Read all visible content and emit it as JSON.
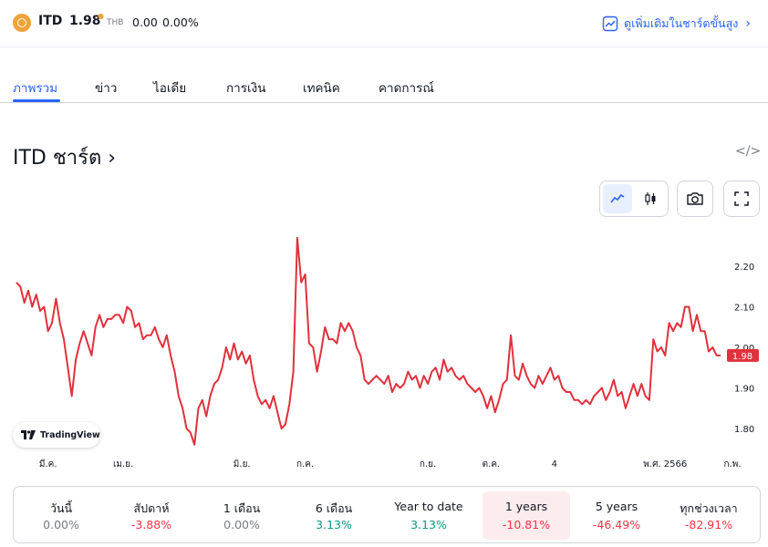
{
  "header": {
    "ticker": "ITD",
    "price": "1.98",
    "currency": "THB",
    "change": "0.00",
    "change_pct": "0.00%",
    "advanced_link": "ดูเพิ่มเติมในชาร์ตขั้นสูง",
    "logo_color": "#f0a33a"
  },
  "tabs": [
    {
      "label": "ภาพรวม",
      "active": true
    },
    {
      "label": "ข่าว"
    },
    {
      "label": "ไอเดีย"
    },
    {
      "label": "การเงิน"
    },
    {
      "label": "เทคนิค"
    },
    {
      "label": "คาดการณ์"
    }
  ],
  "chart_section": {
    "title": "ITD ชาร์ต",
    "title_chevron": "›",
    "embed_icon": "</>",
    "badge_text": "TradingView"
  },
  "chart_data": {
    "type": "line",
    "color": "#e0313c",
    "title": "",
    "xlabel": "",
    "ylabel": "",
    "y_ticks": [
      "2.20",
      "2.10",
      "2.00",
      "1.90",
      "1.80"
    ],
    "ylim": [
      1.74,
      2.27
    ],
    "x_ticks": [
      {
        "label": "มี.ค.",
        "index": 8
      },
      {
        "label": "เม.ย.",
        "index": 27
      },
      {
        "label": "มิ.ย.",
        "index": 57
      },
      {
        "label": "ก.ค.",
        "index": 73
      },
      {
        "label": "ก.ย.",
        "index": 104
      },
      {
        "label": "ต.ค.",
        "index": 120
      },
      {
        "label": "4",
        "index": 136
      },
      {
        "label": "พ.ศ. 2566",
        "index": 164
      },
      {
        "label": "ก.พ.",
        "index": 181
      }
    ],
    "last_value_label": "1.98",
    "values": [
      2.16,
      2.15,
      2.11,
      2.14,
      2.1,
      2.13,
      2.09,
      2.1,
      2.04,
      2.06,
      2.12,
      2.06,
      2.02,
      1.95,
      1.88,
      1.97,
      2.01,
      2.04,
      2.01,
      1.98,
      2.05,
      2.08,
      2.05,
      2.07,
      2.07,
      2.08,
      2.08,
      2.06,
      2.1,
      2.09,
      2.05,
      2.06,
      2.02,
      2.03,
      2.03,
      2.05,
      2.02,
      2.0,
      2.03,
      1.98,
      1.94,
      1.88,
      1.85,
      1.8,
      1.79,
      1.76,
      1.85,
      1.87,
      1.83,
      1.88,
      1.91,
      1.92,
      1.95,
      2.0,
      1.97,
      2.01,
      1.97,
      1.99,
      1.96,
      1.98,
      1.92,
      1.88,
      1.86,
      1.87,
      1.85,
      1.88,
      1.84,
      1.8,
      1.81,
      1.86,
      1.94,
      2.27,
      2.16,
      2.18,
      2.01,
      2.0,
      1.94,
      1.99,
      2.05,
      2.02,
      2.02,
      2.01,
      2.06,
      2.04,
      2.06,
      2.04,
      2.0,
      1.98,
      1.92,
      1.91,
      1.92,
      1.93,
      1.92,
      1.91,
      1.93,
      1.89,
      1.91,
      1.9,
      1.91,
      1.94,
      1.92,
      1.93,
      1.9,
      1.93,
      1.91,
      1.94,
      1.95,
      1.92,
      1.97,
      1.94,
      1.95,
      1.93,
      1.92,
      1.93,
      1.91,
      1.9,
      1.89,
      1.9,
      1.88,
      1.85,
      1.88,
      1.84,
      1.87,
      1.91,
      1.92,
      2.03,
      1.93,
      1.92,
      1.96,
      1.93,
      1.91,
      1.9,
      1.93,
      1.91,
      1.93,
      1.95,
      1.92,
      1.93,
      1.9,
      1.89,
      1.89,
      1.87,
      1.87,
      1.86,
      1.87,
      1.86,
      1.88,
      1.89,
      1.9,
      1.87,
      1.89,
      1.92,
      1.88,
      1.89,
      1.85,
      1.88,
      1.91,
      1.88,
      1.91,
      1.88,
      1.87,
      2.02,
      1.99,
      2.0,
      1.98,
      2.06,
      2.04,
      2.06,
      2.05,
      2.1,
      2.1,
      2.04,
      2.08,
      2.04,
      2.04,
      1.99,
      2.0,
      1.98,
      1.98
    ]
  },
  "periods": [
    {
      "label": "วันนี้",
      "value": "0.00%",
      "color": "#787b86"
    },
    {
      "label": "สัปดาห์",
      "value": "-3.88%",
      "color": "#f23645"
    },
    {
      "label": "1 เดือน",
      "value": "0.00%",
      "color": "#787b86"
    },
    {
      "label": "6 เดือน",
      "value": "3.13%",
      "color": "#089981"
    },
    {
      "label": "Year to date",
      "value": "3.13%",
      "color": "#089981"
    },
    {
      "label": "1 years",
      "value": "-10.81%",
      "color": "#f23645",
      "active": true
    },
    {
      "label": "5 years",
      "value": "-46.49%",
      "color": "#f23645"
    },
    {
      "label": "ทุกช่วงเวลา",
      "value": "-82.91%",
      "color": "#f23645"
    }
  ]
}
